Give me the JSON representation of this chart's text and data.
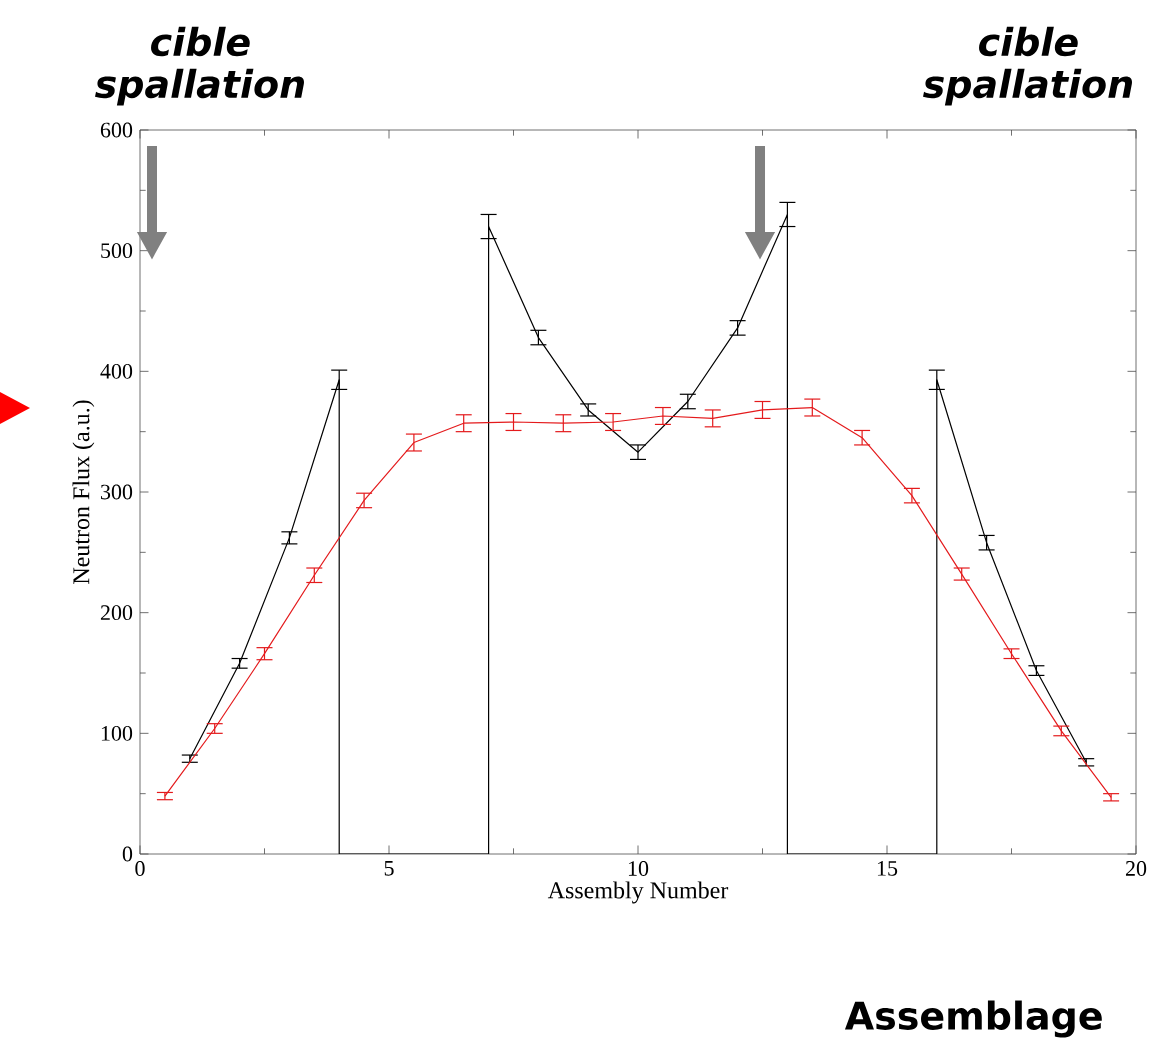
{
  "chart_data": {
    "type": "line",
    "xlabel": "Assembly Number",
    "ylabel": "Neutron Flux (a.u.)",
    "xlim": [
      0,
      20
    ],
    "xticks": [
      0,
      5,
      10,
      15,
      20
    ],
    "ylim": [
      0,
      600
    ],
    "yticks": [
      0,
      100,
      200,
      300,
      400,
      500,
      600
    ],
    "grid": false,
    "marker": "none",
    "line_style": "solid",
    "series": [
      {
        "color": "#000000",
        "x": [
          1,
          2,
          3,
          4,
          4,
          7,
          7,
          8,
          9,
          10,
          11,
          12,
          13,
          13,
          16,
          16,
          17,
          18,
          19
        ],
        "values": [
          79,
          158,
          262,
          393,
          0,
          0,
          520,
          428,
          368,
          333,
          375,
          436,
          530,
          0,
          0,
          393,
          258,
          152,
          76
        ],
        "errors": [
          3,
          4,
          5,
          8,
          null,
          null,
          10,
          6,
          5,
          6,
          6,
          6,
          10,
          null,
          null,
          8,
          6,
          4,
          3
        ]
      },
      {
        "color": "#e41a1c",
        "x": [
          0.5,
          1.5,
          2.5,
          3.5,
          4.5,
          5.5,
          6.5,
          7.5,
          8.5,
          9.5,
          10.5,
          11.5,
          12.5,
          13.5,
          14.5,
          15.5,
          16.5,
          17.5,
          18.5,
          19.5
        ],
        "values": [
          48,
          104,
          166,
          231,
          293,
          341,
          357,
          358,
          357,
          358,
          363,
          361,
          368,
          370,
          345,
          297,
          232,
          166,
          102,
          47
        ],
        "errors": [
          3,
          4,
          5,
          6,
          6,
          7,
          7,
          7,
          7,
          7,
          7,
          7,
          7,
          7,
          6,
          6,
          5,
          4,
          4,
          3
        ]
      }
    ],
    "annotations": [
      "cible spallation",
      "cible spallation",
      "Assemblage"
    ]
  }
}
